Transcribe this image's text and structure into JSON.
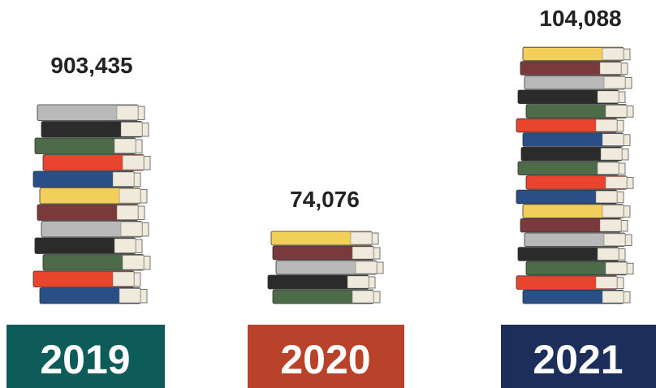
{
  "columns": [
    {
      "count": "903,435",
      "year": "2019"
    },
    {
      "count": "74,076",
      "year": "2020"
    },
    {
      "count": "104,088",
      "year": "2021"
    }
  ]
}
